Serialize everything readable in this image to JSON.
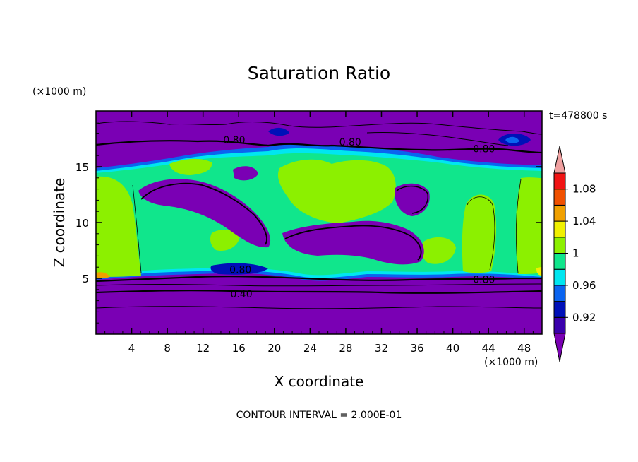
{
  "chart_data": {
    "type": "heatmap",
    "title": "Saturation Ratio",
    "xlabel": "X coordinate",
    "ylabel": "Z coordinate",
    "x_unit": "(×1000 m)",
    "y_unit": "(×1000 m)",
    "xlim": [
      0,
      50
    ],
    "ylim": [
      0,
      20
    ],
    "x_ticks": [
      4,
      8,
      12,
      16,
      20,
      24,
      28,
      32,
      36,
      40,
      44,
      48
    ],
    "y_ticks": [
      5,
      10,
      15
    ],
    "time_label": "t=478800 s",
    "footer": "CONTOUR INTERVAL = 2.000E-01",
    "colorbar": {
      "levels": [
        0.9,
        0.92,
        0.94,
        0.96,
        0.98,
        1.0,
        1.02,
        1.04,
        1.06,
        1.08,
        1.1
      ],
      "tick_labels": [
        "0.92",
        "0.96",
        "1",
        "1.04",
        "1.08"
      ],
      "tick_values": [
        0.92,
        0.96,
        1.0,
        1.04,
        1.08
      ],
      "colors": [
        "#7a00b4",
        "#3a00ac",
        "#0010b8",
        "#0a64f0",
        "#00e6f0",
        "#10e68c",
        "#8cf000",
        "#f0f000",
        "#f0a000",
        "#f05000",
        "#f01414",
        "#f0a0a0"
      ]
    },
    "contour_labels": [
      {
        "text": "0.80",
        "x": 15.5,
        "z": 17.4
      },
      {
        "text": "0.80",
        "x": 28.5,
        "z": 17.2
      },
      {
        "text": "0.80",
        "x": 43.5,
        "z": 16.6
      },
      {
        "text": "0.80",
        "x": 16.2,
        "z": 5.8
      },
      {
        "text": "0.80",
        "x": 43.5,
        "z": 4.9
      },
      {
        "text": "0.40",
        "x": 16.3,
        "z": 3.6
      }
    ]
  }
}
